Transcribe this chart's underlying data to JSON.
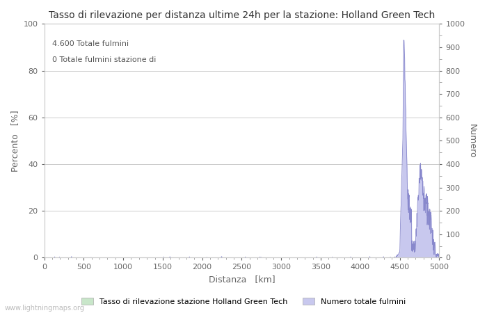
{
  "title": "Tasso di rilevazione per distanza ultime 24h per la stazione: Holland Green Tech",
  "xlabel": "Distanza   [km]",
  "ylabel_left": "Percento   [%]",
  "ylabel_right": "Numero",
  "annotation_line1": "4.600 Totale fulmini",
  "annotation_line2": "0 Totale fulmini stazione di",
  "xlim": [
    0,
    5000
  ],
  "ylim_left": [
    0,
    100
  ],
  "ylim_right": [
    0,
    1000
  ],
  "xticks": [
    0,
    500,
    1000,
    1500,
    2000,
    2500,
    3000,
    3500,
    4000,
    4500,
    5000
  ],
  "yticks_left": [
    0,
    20,
    40,
    60,
    80,
    100
  ],
  "yticks_right": [
    0,
    100,
    200,
    300,
    400,
    500,
    600,
    700,
    800,
    900,
    1000
  ],
  "bar_color_detection": "#c8e6c9",
  "line_color_number": "#8888cc",
  "fill_color_number": "#c8c8ee",
  "grid_color": "#cccccc",
  "bg_color": "#ffffff",
  "legend_label_left": "Tasso di rilevazione stazione Holland Green Tech",
  "legend_label_right": "Numero totale fulmini",
  "watermark": "www.lightningmaps.org",
  "title_fontsize": 10,
  "label_fontsize": 9,
  "tick_fontsize": 8,
  "annotation_fontsize": 8,
  "watermark_fontsize": 7,
  "legend_fontsize": 8
}
